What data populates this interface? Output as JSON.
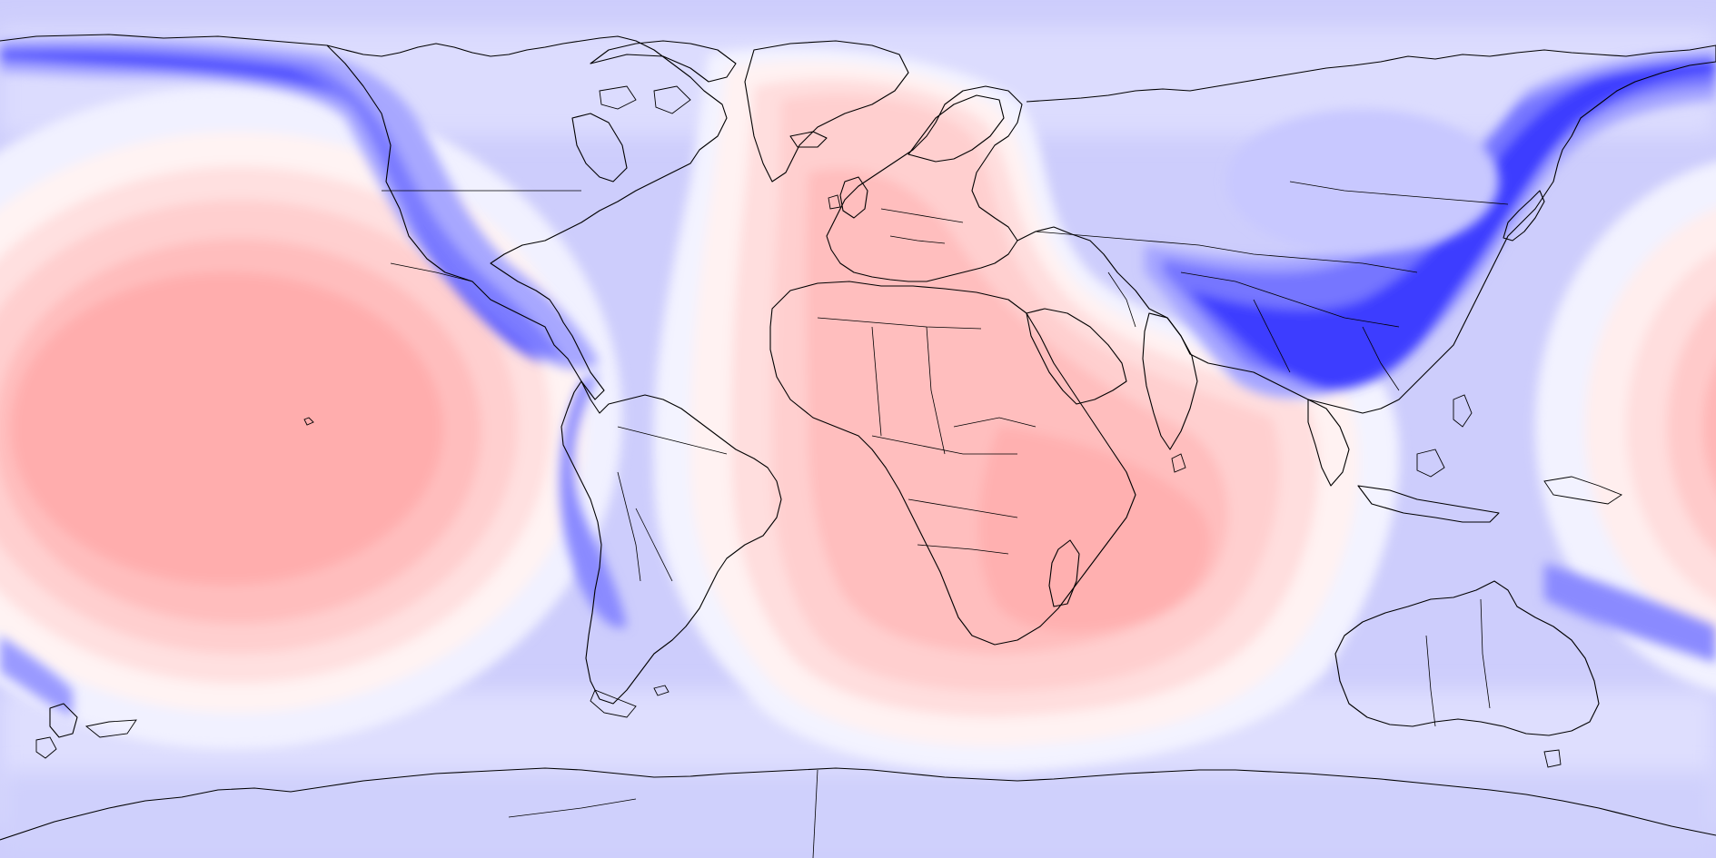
{
  "map": {
    "projection": "equirectangular",
    "colormap": {
      "low": "#0000ff",
      "mid": "#ffffff",
      "high": "#ff9a9a",
      "levels": [
        "#1a1aff",
        "#4d4dff",
        "#7878ff",
        "#a2a2ff",
        "#c7c7ff",
        "#e5e5ff",
        "#f6f6ff",
        "#fff2f2",
        "#ffe0e0",
        "#ffcccc",
        "#ffb8b8",
        "#ffa8a8"
      ]
    },
    "background_color": "#cccdfd",
    "outline_color": "#000000",
    "features": [
      "coastlines",
      "country-borders",
      "antarctica"
    ]
  }
}
